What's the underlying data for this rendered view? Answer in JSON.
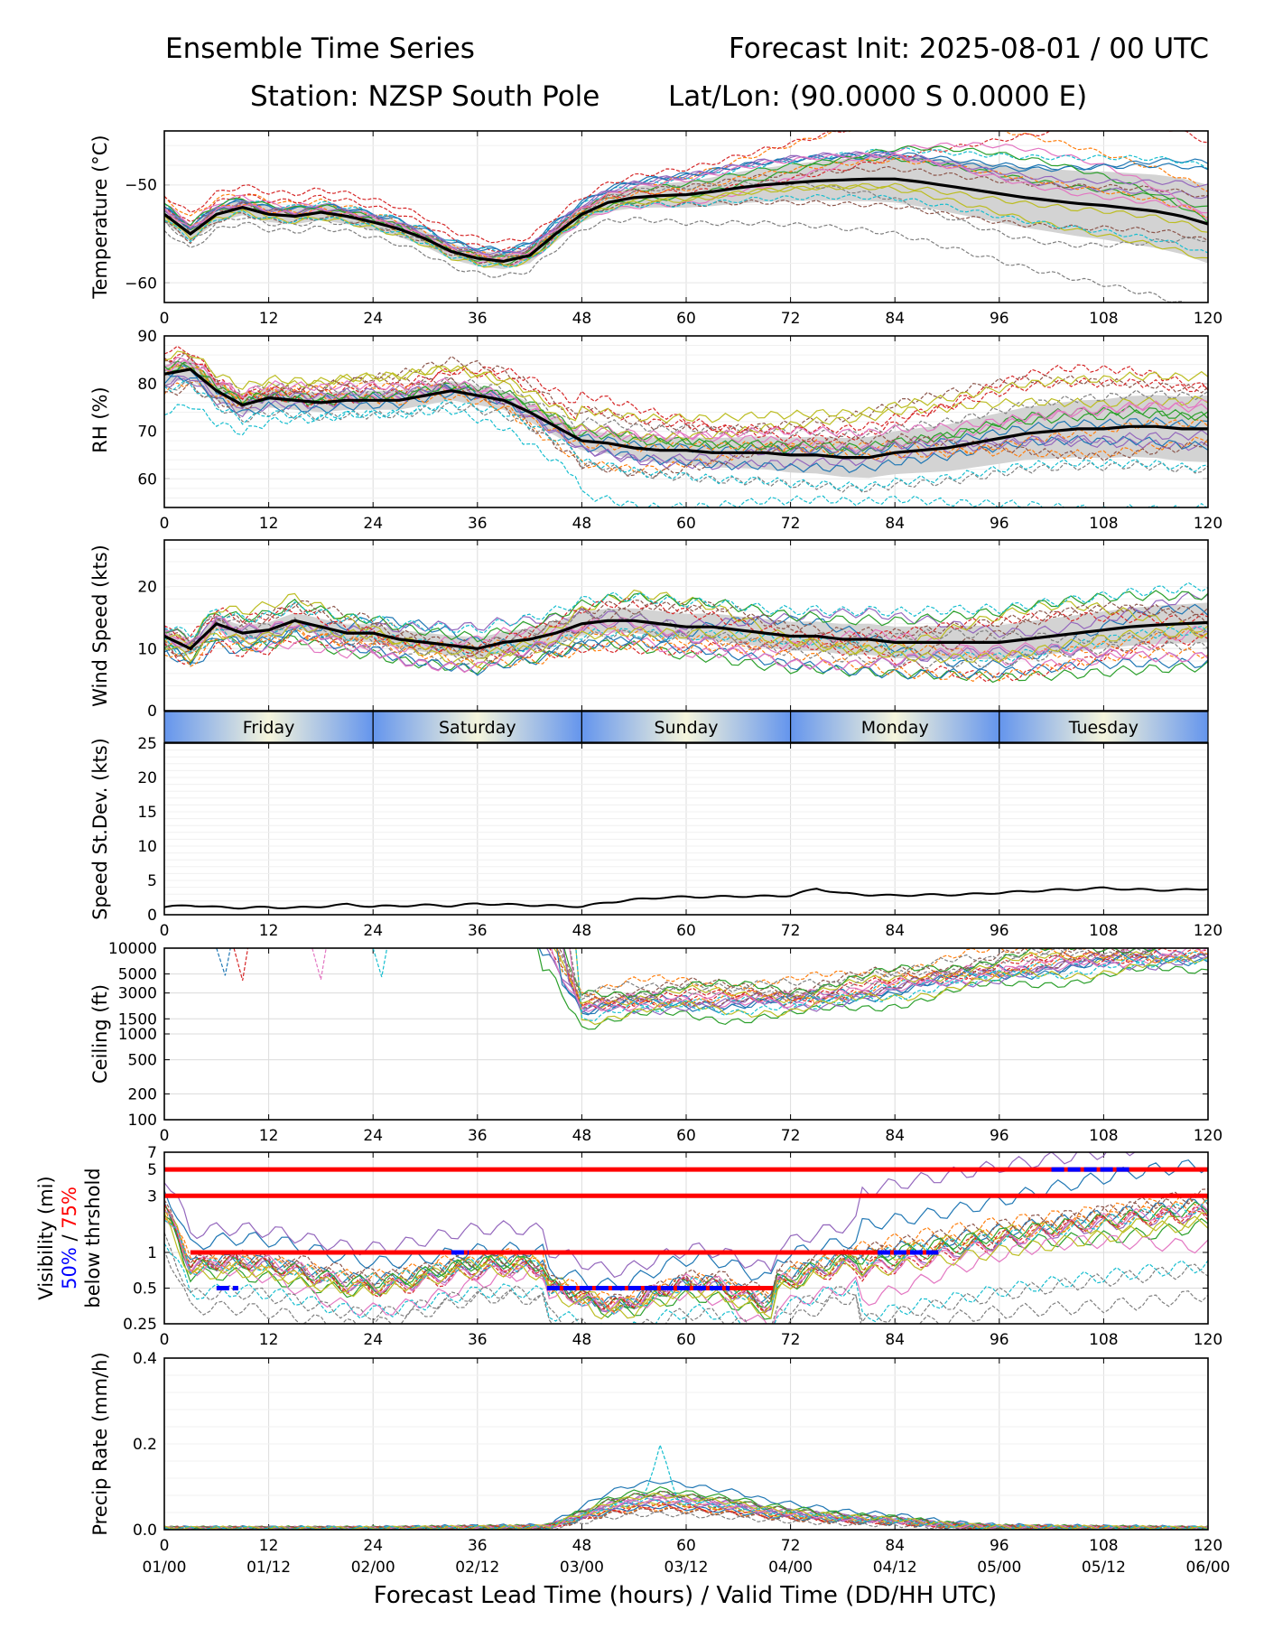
{
  "header": {
    "title_left": "Ensemble Time Series",
    "title_right": "Forecast Init: 2025-08-01 / 00 UTC",
    "station": "Station: NZSP South Pole",
    "latlon": "Lat/Lon: (90.0000 S 0.0000 E)"
  },
  "colors": {
    "mean": "#000000",
    "spread": "#d3d3d3",
    "member_palette": [
      "#1f77b4",
      "#ff7f0e",
      "#2ca02c",
      "#d62728",
      "#9467bd",
      "#8c564b",
      "#e377c2",
      "#7f7f7f",
      "#bcbd22",
      "#17becf"
    ],
    "threshold_75": "#ff0000",
    "threshold_50": "#0000ff",
    "day_band_center": "#f5f5dc",
    "day_band_edge": "#6495ed"
  },
  "xaxis": {
    "lead_ticks": [
      "0",
      "12",
      "24",
      "36",
      "48",
      "60",
      "72",
      "84",
      "96",
      "108",
      "120"
    ],
    "valid_ticks": [
      "01/00",
      "01/12",
      "02/00",
      "02/12",
      "03/00",
      "03/12",
      "04/00",
      "04/12",
      "05/00",
      "05/12",
      "06/00"
    ],
    "label": "Forecast Lead Time (hours) / Valid Time (DD/HH UTC)"
  },
  "day_bands": [
    "Friday",
    "Saturday",
    "Sunday",
    "Monday",
    "Tuesday"
  ],
  "chart_data": [
    {
      "type": "line",
      "ylabel": "Temperature (°C)",
      "ylim": [
        -62,
        -44.5
      ],
      "yticks": [
        -60,
        -50
      ],
      "ytick_labels": [
        "−60",
        "−50"
      ],
      "ensemble_members": 20,
      "x": [
        0,
        3,
        6,
        9,
        12,
        15,
        18,
        21,
        24,
        27,
        30,
        33,
        36,
        39,
        42,
        45,
        48,
        51,
        54,
        57,
        60,
        63,
        66,
        69,
        72,
        75,
        78,
        81,
        84,
        87,
        90,
        93,
        96,
        99,
        102,
        105,
        108,
        111,
        114,
        117,
        120
      ],
      "mean": [
        -53,
        -55,
        -53,
        -52.3,
        -53,
        -53.2,
        -52.8,
        -53.2,
        -53.8,
        -54.5,
        -55.5,
        -56.8,
        -57.5,
        -57.8,
        -57.2,
        -55,
        -53,
        -51.8,
        -51.3,
        -51.1,
        -51,
        -50.7,
        -50.3,
        -50,
        -49.8,
        -49.6,
        -49.5,
        -49.4,
        -49.4,
        -49.7,
        -50.1,
        -50.5,
        -50.9,
        -51.3,
        -51.6,
        -51.9,
        -52.1,
        -52.4,
        -52.7,
        -53.2,
        -54
      ]
    },
    {
      "type": "line",
      "ylabel": "RH (%)",
      "ylim": [
        54,
        90
      ],
      "yticks": [
        60,
        70,
        80,
        90
      ],
      "ytick_labels": [
        "60",
        "70",
        "80",
        "90"
      ],
      "ensemble_members": 20,
      "x": [
        0,
        3,
        6,
        9,
        12,
        15,
        18,
        21,
        24,
        27,
        30,
        33,
        36,
        39,
        42,
        45,
        48,
        51,
        54,
        57,
        60,
        63,
        66,
        69,
        72,
        75,
        78,
        81,
        84,
        87,
        90,
        93,
        96,
        99,
        102,
        105,
        108,
        111,
        114,
        117,
        120
      ],
      "mean": [
        82,
        83,
        78.5,
        75.5,
        77,
        76.5,
        76,
        76.5,
        76.5,
        76.5,
        77.5,
        78.5,
        77.5,
        76.5,
        74,
        71,
        68,
        67.5,
        66.5,
        66,
        66,
        65.5,
        65.5,
        65.5,
        65,
        65,
        64.5,
        64.5,
        65.5,
        66,
        66.5,
        67.5,
        68.5,
        69.5,
        70,
        70.5,
        70.5,
        71,
        71,
        70.5,
        70.5
      ]
    },
    {
      "type": "line",
      "ylabel": "Wind Speed (kts)",
      "ylim": [
        0,
        27.5
      ],
      "yticks": [
        0,
        10,
        20
      ],
      "ytick_labels": [
        "0",
        "10",
        "20"
      ],
      "ensemble_members": 20,
      "x": [
        0,
        3,
        6,
        9,
        12,
        15,
        18,
        21,
        24,
        27,
        30,
        33,
        36,
        39,
        42,
        45,
        48,
        51,
        54,
        57,
        60,
        63,
        66,
        69,
        72,
        75,
        78,
        81,
        84,
        87,
        90,
        93,
        96,
        99,
        102,
        105,
        108,
        111,
        114,
        117,
        120
      ],
      "mean": [
        12,
        10,
        14,
        12.5,
        13,
        14.5,
        13.5,
        12.5,
        12.5,
        11.5,
        11,
        10.5,
        10,
        11,
        11.5,
        12.5,
        14,
        14.5,
        14.5,
        14,
        13.5,
        13.5,
        13,
        12.5,
        12,
        12,
        11.5,
        11.5,
        11,
        11,
        11,
        11,
        11,
        11.5,
        12,
        12.5,
        13,
        13.5,
        13.8,
        14,
        14.2
      ]
    },
    {
      "type": "line",
      "ylabel": "Speed St.Dev. (kts)",
      "ylim": [
        0,
        25
      ],
      "yticks": [
        0,
        5,
        10,
        15,
        20,
        25
      ],
      "ytick_labels": [
        "0",
        "5",
        "10",
        "15",
        "20",
        "25"
      ],
      "x": [
        0,
        3,
        6,
        9,
        12,
        15,
        18,
        21,
        24,
        27,
        30,
        33,
        36,
        39,
        42,
        45,
        48,
        51,
        54,
        57,
        60,
        63,
        66,
        69,
        72,
        75,
        78,
        81,
        84,
        87,
        90,
        93,
        96,
        99,
        102,
        105,
        108,
        111,
        114,
        117,
        120
      ],
      "values": [
        1.1,
        1.4,
        1.1,
        1.0,
        1.1,
        1.0,
        1.2,
        1.5,
        1.2,
        1.3,
        1.4,
        1.3,
        1.6,
        1.5,
        1.4,
        1.3,
        1.2,
        1.8,
        2.2,
        2.5,
        2.6,
        2.6,
        2.7,
        2.7,
        2.8,
        3.8,
        3.1,
        2.9,
        2.8,
        2.9,
        2.9,
        3.0,
        3.2,
        3.4,
        3.6,
        3.7,
        3.9,
        3.7,
        3.6,
        3.6,
        3.8
      ]
    },
    {
      "type": "line",
      "ylabel": "Ceiling (ft)",
      "scale": "log",
      "ylim": [
        100,
        10000
      ],
      "yticks": [
        100,
        200,
        500,
        1000,
        1500,
        3000,
        5000,
        10000
      ],
      "ytick_labels": [
        "100",
        "200",
        "500",
        "1000",
        "1500",
        "3000",
        "5000",
        "10000"
      ],
      "ensemble_members": 20,
      "x": [
        44,
        46,
        48,
        51,
        54,
        57,
        60,
        63,
        66,
        69,
        72,
        75,
        78,
        81,
        84,
        87,
        90,
        93,
        96,
        99,
        102,
        105,
        108,
        111,
        114,
        117,
        120
      ],
      "typical_member": [
        10000,
        4500,
        2000,
        2200,
        2400,
        2500,
        2600,
        2500,
        2500,
        2600,
        2500,
        2700,
        3000,
        3300,
        3700,
        4100,
        4600,
        5100,
        5600,
        6100,
        6600,
        7000,
        7400,
        7800,
        8200,
        8700,
        9200
      ]
    },
    {
      "type": "line",
      "ylabel": "Visibility (mi)",
      "ylabel_50": "50%",
      "ylabel_sep": " / ",
      "ylabel_75": "75%",
      "ylabel_line2": "below thrshold",
      "scale": "log",
      "ylim": [
        0.25,
        7
      ],
      "yticks": [
        0.25,
        0.5,
        1,
        3,
        5,
        7
      ],
      "ytick_labels": [
        "0.25",
        "0.5",
        "1",
        "3",
        "5",
        "7"
      ],
      "ensemble_members": 20,
      "thresholds_75": [
        {
          "level": 5,
          "x0": 0,
          "x1": 120
        },
        {
          "level": 3,
          "x0": 0,
          "x1": 120
        },
        {
          "level": 1,
          "x0": 3,
          "x1": 89
        },
        {
          "level": 0.5,
          "x0": 44,
          "x1": 70
        }
      ],
      "thresholds_50": [
        {
          "level": 0.5,
          "x0": 6,
          "x1": 8.5
        },
        {
          "level": 1,
          "x0": 33,
          "x1": 35
        },
        {
          "level": 0.5,
          "x0": 44,
          "x1": 65
        },
        {
          "level": 1,
          "x0": 82,
          "x1": 89
        },
        {
          "level": 5,
          "x0": 102,
          "x1": 111
        }
      ]
    },
    {
      "type": "line",
      "ylabel": "Precip Rate (mm/h)",
      "ylim": [
        0,
        0.4
      ],
      "yticks": [
        0.0,
        0.2,
        0.4
      ],
      "ytick_labels": [
        "0.0",
        "0.2",
        "0.4"
      ],
      "ensemble_members": 20,
      "x": [
        0,
        24,
        44,
        48,
        51,
        54,
        57,
        60,
        63,
        66,
        69,
        72,
        75,
        78,
        81,
        84,
        87,
        90,
        96,
        120
      ],
      "typical_member": [
        0.002,
        0.002,
        0.005,
        0.03,
        0.05,
        0.06,
        0.065,
        0.06,
        0.055,
        0.05,
        0.04,
        0.035,
        0.03,
        0.025,
        0.022,
        0.02,
        0.015,
        0.01,
        0.005,
        0.002
      ]
    }
  ]
}
